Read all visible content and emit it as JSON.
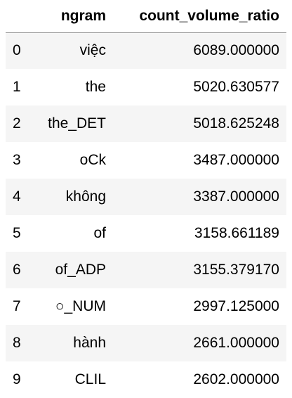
{
  "table": {
    "columns": [
      "ngram",
      "count_volume_ratio"
    ],
    "rows": [
      {
        "index": "0",
        "ngram": "việc",
        "count_volume_ratio": "6089.000000"
      },
      {
        "index": "1",
        "ngram": "the",
        "count_volume_ratio": "5020.630577"
      },
      {
        "index": "2",
        "ngram": "the_DET",
        "count_volume_ratio": "5018.625248"
      },
      {
        "index": "3",
        "ngram": "oCk",
        "count_volume_ratio": "3487.000000"
      },
      {
        "index": "4",
        "ngram": "không",
        "count_volume_ratio": "3387.000000"
      },
      {
        "index": "5",
        "ngram": "of",
        "count_volume_ratio": "3158.661189"
      },
      {
        "index": "6",
        "ngram": "of_ADP",
        "count_volume_ratio": "3155.379170"
      },
      {
        "index": "7",
        "ngram": "○_NUM",
        "count_volume_ratio": "2997.125000"
      },
      {
        "index": "8",
        "ngram": "hành",
        "count_volume_ratio": "2661.000000"
      },
      {
        "index": "9",
        "ngram": "CLIL",
        "count_volume_ratio": "2602.000000"
      }
    ]
  }
}
